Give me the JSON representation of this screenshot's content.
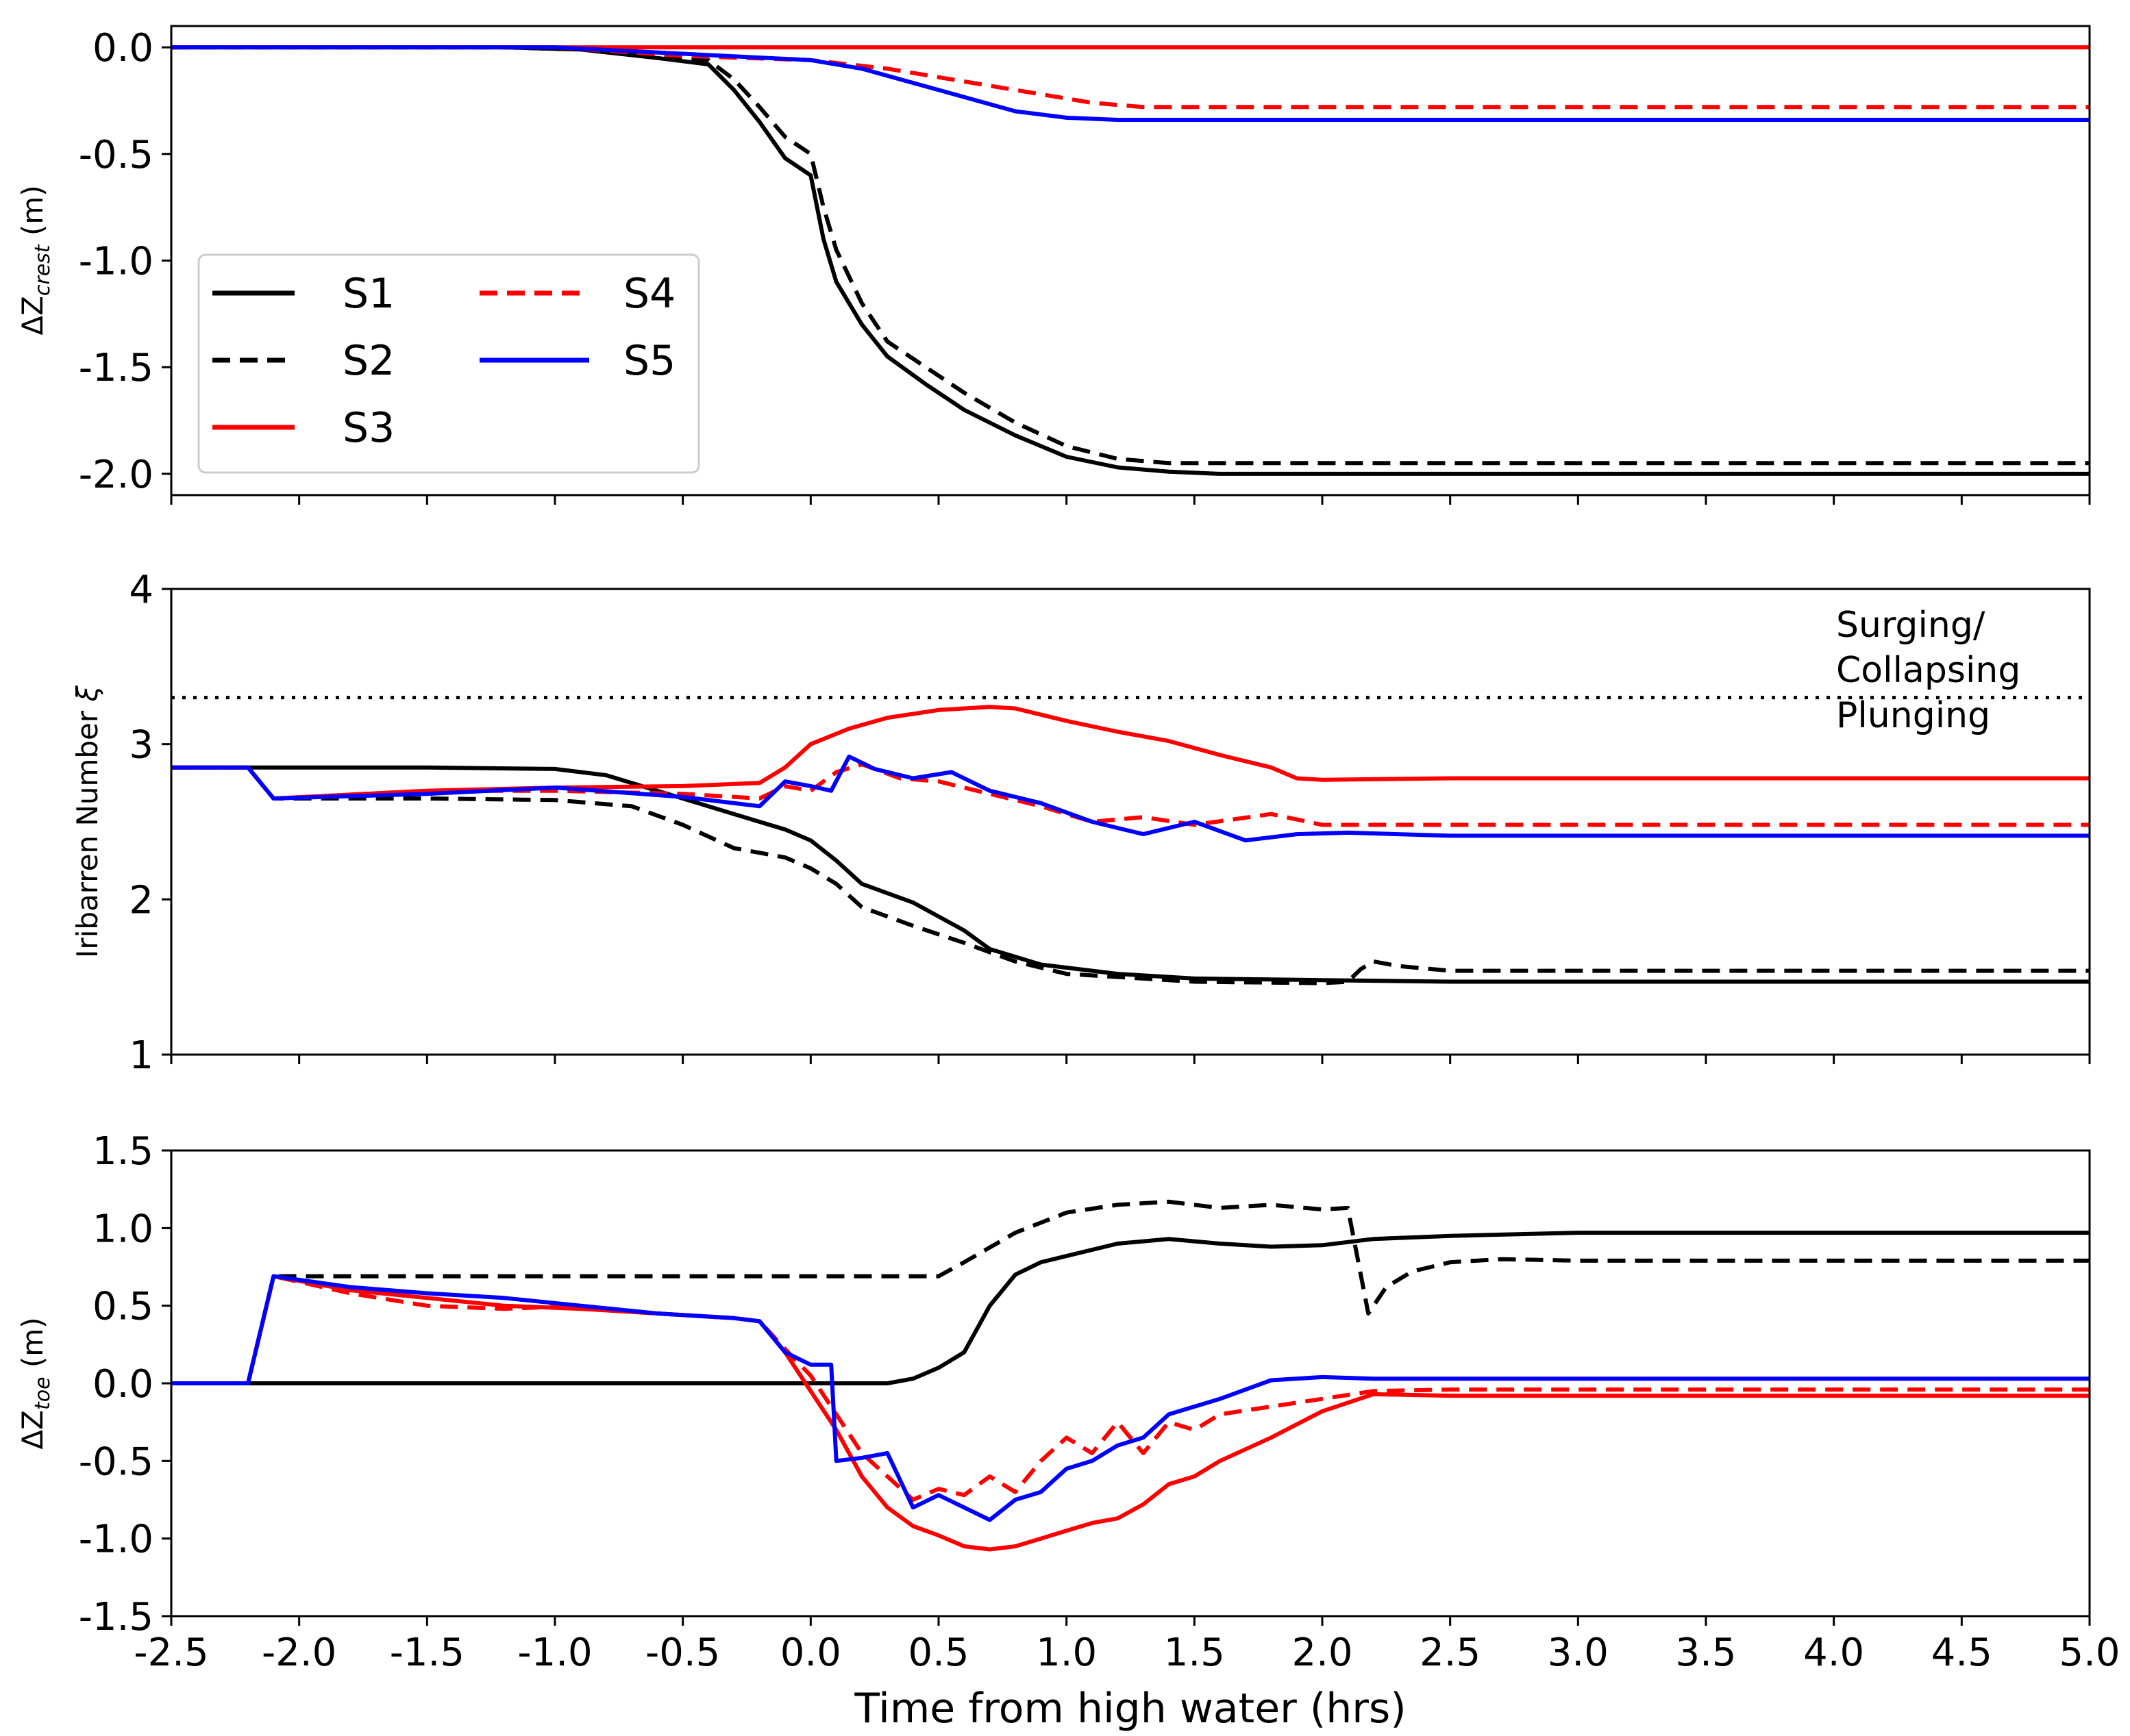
{
  "chart_data": [
    {
      "type": "line",
      "panel": "top",
      "ylabel_prefix": "ΔZ",
      "ylabel_sub": "crest",
      "ylabel_suffix": " (m)",
      "ylim": [
        -2.1,
        0.1
      ],
      "yticks": [
        0.0,
        -0.5,
        -1.0,
        -1.5,
        -2.0
      ],
      "ytick_labels": [
        "0.0",
        "-0.5",
        "-1.0",
        "-1.5",
        "-2.0"
      ],
      "xlim": [
        -2.5,
        5.0
      ],
      "legend": {
        "placement": "center-left",
        "entries": [
          {
            "label": "S1",
            "color": "#000000",
            "dash": "solid"
          },
          {
            "label": "S2",
            "color": "#000000",
            "dash": "dashed"
          },
          {
            "label": "S3",
            "color": "#ff0000",
            "dash": "solid"
          },
          {
            "label": "S4",
            "color": "#ff0000",
            "dash": "dashed"
          },
          {
            "label": "S5",
            "color": "#0000ff",
            "dash": "solid"
          }
        ]
      },
      "series": [
        {
          "name": "S1",
          "color": "#000000",
          "dash": "solid",
          "x": [
            -2.5,
            -1.2,
            -0.9,
            -0.6,
            -0.4,
            -0.3,
            -0.2,
            -0.1,
            0.0,
            0.05,
            0.1,
            0.2,
            0.3,
            0.45,
            0.6,
            0.8,
            1.0,
            1.2,
            1.4,
            1.6,
            2.0,
            5.0
          ],
          "y": [
            0.0,
            0.0,
            -0.01,
            -0.05,
            -0.08,
            -0.2,
            -0.35,
            -0.52,
            -0.6,
            -0.9,
            -1.1,
            -1.3,
            -1.45,
            -1.58,
            -1.7,
            -1.82,
            -1.92,
            -1.97,
            -1.99,
            -2.0,
            -2.0,
            -2.0
          ]
        },
        {
          "name": "S2",
          "color": "#000000",
          "dash": "dashed",
          "x": [
            -2.5,
            -1.2,
            -0.9,
            -0.6,
            -0.4,
            -0.3,
            -0.2,
            -0.1,
            0.0,
            0.05,
            0.1,
            0.2,
            0.3,
            0.45,
            0.6,
            0.8,
            1.0,
            1.2,
            1.4,
            2.0,
            5.0
          ],
          "y": [
            0.0,
            0.0,
            -0.01,
            -0.04,
            -0.06,
            -0.15,
            -0.28,
            -0.42,
            -0.5,
            -0.75,
            -0.95,
            -1.2,
            -1.38,
            -1.5,
            -1.62,
            -1.76,
            -1.87,
            -1.93,
            -1.95,
            -1.95,
            -1.95
          ]
        },
        {
          "name": "S3",
          "color": "#ff0000",
          "dash": "solid",
          "x": [
            -2.5,
            5.0
          ],
          "y": [
            0.0,
            0.0
          ]
        },
        {
          "name": "S4",
          "color": "#ff0000",
          "dash": "dashed",
          "x": [
            -2.5,
            -1.0,
            -0.5,
            0.0,
            0.3,
            0.6,
            0.9,
            1.1,
            1.3,
            1.5,
            5.0
          ],
          "y": [
            0.0,
            0.0,
            -0.04,
            -0.06,
            -0.1,
            -0.16,
            -0.22,
            -0.26,
            -0.28,
            -0.28,
            -0.28
          ]
        },
        {
          "name": "S5",
          "color": "#0000ff",
          "dash": "solid",
          "x": [
            -2.5,
            -1.0,
            -0.5,
            0.0,
            0.2,
            0.5,
            0.8,
            1.0,
            1.2,
            1.5,
            5.0
          ],
          "y": [
            0.0,
            0.0,
            -0.03,
            -0.06,
            -0.1,
            -0.2,
            -0.3,
            -0.33,
            -0.34,
            -0.34,
            -0.34
          ]
        }
      ]
    },
    {
      "type": "line",
      "panel": "middle",
      "ylabel": "Iribarren Number",
      "ylabel_symbol": "ξ",
      "ylim": [
        1,
        4
      ],
      "yticks": [
        1,
        2,
        3,
        4
      ],
      "ytick_labels": [
        "1",
        "2",
        "3",
        "4"
      ],
      "xlim": [
        -2.5,
        5.0
      ],
      "threshold": {
        "y": 3.3,
        "style": "dotted"
      },
      "annotations": [
        "Surging/",
        "Collapsing",
        "Plunging"
      ],
      "series": [
        {
          "name": "S1",
          "color": "#000000",
          "dash": "solid",
          "x": [
            -2.5,
            -2.2,
            -1.5,
            -1.0,
            -0.8,
            -0.6,
            -0.5,
            -0.3,
            -0.1,
            0.0,
            0.1,
            0.2,
            0.4,
            0.6,
            0.7,
            0.9,
            1.2,
            1.5,
            2.0,
            2.5,
            5.0
          ],
          "y": [
            2.85,
            2.85,
            2.85,
            2.84,
            2.8,
            2.7,
            2.65,
            2.55,
            2.45,
            2.38,
            2.25,
            2.1,
            1.98,
            1.8,
            1.68,
            1.58,
            1.52,
            1.49,
            1.48,
            1.47,
            1.47
          ]
        },
        {
          "name": "S2",
          "color": "#000000",
          "dash": "dashed",
          "x": [
            -2.5,
            -2.2,
            -2.1,
            -1.5,
            -1.0,
            -0.7,
            -0.5,
            -0.3,
            -0.1,
            0.0,
            0.1,
            0.2,
            0.4,
            0.6,
            0.8,
            1.0,
            1.5,
            2.0,
            2.1,
            2.15,
            2.2,
            2.3,
            2.5,
            5.0
          ],
          "y": [
            2.85,
            2.85,
            2.65,
            2.65,
            2.64,
            2.6,
            2.48,
            2.33,
            2.27,
            2.2,
            2.1,
            1.95,
            1.83,
            1.72,
            1.6,
            1.52,
            1.47,
            1.46,
            1.47,
            1.55,
            1.6,
            1.57,
            1.54,
            1.54
          ]
        },
        {
          "name": "S3",
          "color": "#ff0000",
          "dash": "solid",
          "x": [
            -2.5,
            -2.2,
            -2.1,
            -1.5,
            -1.0,
            -0.5,
            -0.2,
            -0.1,
            0.0,
            0.15,
            0.3,
            0.5,
            0.7,
            0.8,
            1.0,
            1.2,
            1.4,
            1.6,
            1.8,
            1.9,
            2.0,
            2.5,
            3.0,
            5.0
          ],
          "y": [
            2.85,
            2.85,
            2.65,
            2.7,
            2.72,
            2.73,
            2.75,
            2.85,
            3.0,
            3.1,
            3.17,
            3.22,
            3.24,
            3.23,
            3.15,
            3.08,
            3.02,
            2.93,
            2.85,
            2.78,
            2.77,
            2.78,
            2.78,
            2.78
          ]
        },
        {
          "name": "S4",
          "color": "#ff0000",
          "dash": "dashed",
          "x": [
            -2.5,
            -2.2,
            -2.1,
            -1.5,
            -1.0,
            -0.5,
            -0.2,
            -0.1,
            0.0,
            0.1,
            0.2,
            0.35,
            0.5,
            0.7,
            0.9,
            1.1,
            1.3,
            1.5,
            1.8,
            2.0,
            2.5,
            5.0
          ],
          "y": [
            2.85,
            2.85,
            2.65,
            2.7,
            2.7,
            2.68,
            2.65,
            2.73,
            2.7,
            2.82,
            2.87,
            2.78,
            2.76,
            2.68,
            2.6,
            2.5,
            2.53,
            2.48,
            2.55,
            2.48,
            2.48,
            2.48
          ]
        },
        {
          "name": "S5",
          "color": "#0000ff",
          "dash": "solid",
          "x": [
            -2.5,
            -2.2,
            -2.1,
            -1.5,
            -1.0,
            -0.5,
            -0.2,
            -0.1,
            0.0,
            0.08,
            0.15,
            0.25,
            0.4,
            0.55,
            0.7,
            0.9,
            1.1,
            1.3,
            1.5,
            1.7,
            1.9,
            2.1,
            2.5,
            5.0
          ],
          "y": [
            2.85,
            2.85,
            2.65,
            2.68,
            2.72,
            2.66,
            2.6,
            2.76,
            2.73,
            2.7,
            2.92,
            2.84,
            2.78,
            2.82,
            2.7,
            2.62,
            2.5,
            2.42,
            2.5,
            2.38,
            2.42,
            2.43,
            2.41,
            2.41
          ]
        }
      ]
    },
    {
      "type": "line",
      "panel": "bottom",
      "ylabel_prefix": "ΔZ",
      "ylabel_sub": "toe",
      "ylabel_suffix": " (m)",
      "ylim": [
        -1.5,
        1.5
      ],
      "yticks": [
        1.5,
        1.0,
        0.5,
        0.0,
        -0.5,
        -1.0,
        -1.5
      ],
      "ytick_labels": [
        "1.5",
        "1.0",
        "0.5",
        "0.0",
        "-0.5",
        "-1.0",
        "-1.5"
      ],
      "xlim": [
        -2.5,
        5.0
      ],
      "xticks": [
        -2.5,
        -2.0,
        -1.5,
        -1.0,
        -0.5,
        0.0,
        0.5,
        1.0,
        1.5,
        2.0,
        2.5,
        3.0,
        3.5,
        4.0,
        4.5,
        5.0
      ],
      "xtick_labels": [
        "-2.5",
        "-2.0",
        "-1.5",
        "-1.0",
        "-0.5",
        "0.0",
        "0.5",
        "1.0",
        "1.5",
        "2.0",
        "2.5",
        "3.0",
        "3.5",
        "4.0",
        "4.5",
        "5.0"
      ],
      "xlabel": "Time from high water (hrs)",
      "series": [
        {
          "name": "S1",
          "color": "#000000",
          "dash": "solid",
          "x": [
            -2.5,
            0.3,
            0.4,
            0.5,
            0.6,
            0.7,
            0.8,
            0.9,
            1.0,
            1.2,
            1.4,
            1.6,
            1.8,
            2.0,
            2.2,
            2.5,
            3.0,
            5.0
          ],
          "y": [
            0.0,
            0.0,
            0.03,
            0.1,
            0.2,
            0.5,
            0.7,
            0.78,
            0.82,
            0.9,
            0.93,
            0.9,
            0.88,
            0.89,
            0.93,
            0.95,
            0.97,
            0.97
          ]
        },
        {
          "name": "S2",
          "color": "#000000",
          "dash": "dashed",
          "x": [
            -2.5,
            -2.2,
            -2.1,
            -1.0,
            0.0,
            0.5,
            0.6,
            0.8,
            1.0,
            1.2,
            1.4,
            1.6,
            1.8,
            2.0,
            2.1,
            2.18,
            2.25,
            2.35,
            2.5,
            2.7,
            3.0,
            5.0
          ],
          "y": [
            0.0,
            0.0,
            0.69,
            0.69,
            0.69,
            0.69,
            0.78,
            0.97,
            1.1,
            1.15,
            1.17,
            1.13,
            1.15,
            1.12,
            1.13,
            0.45,
            0.62,
            0.72,
            0.78,
            0.8,
            0.79,
            0.79
          ]
        },
        {
          "name": "S3",
          "color": "#ff0000",
          "dash": "solid",
          "x": [
            -2.5,
            -2.2,
            -2.1,
            -1.8,
            -1.5,
            -1.2,
            -0.9,
            -0.6,
            -0.3,
            -0.2,
            -0.1,
            0.0,
            0.1,
            0.2,
            0.3,
            0.4,
            0.5,
            0.6,
            0.7,
            0.8,
            0.9,
            1.0,
            1.1,
            1.2,
            1.3,
            1.4,
            1.5,
            1.6,
            1.8,
            2.0,
            2.2,
            2.5,
            5.0
          ],
          "y": [
            0.0,
            0.0,
            0.69,
            0.6,
            0.55,
            0.5,
            0.48,
            0.45,
            0.42,
            0.4,
            0.2,
            -0.05,
            -0.3,
            -0.6,
            -0.8,
            -0.92,
            -0.98,
            -1.05,
            -1.07,
            -1.05,
            -1.0,
            -0.95,
            -0.9,
            -0.87,
            -0.78,
            -0.65,
            -0.6,
            -0.5,
            -0.35,
            -0.18,
            -0.07,
            -0.08,
            -0.08
          ]
        },
        {
          "name": "S4",
          "color": "#ff0000",
          "dash": "dashed",
          "x": [
            -2.5,
            -2.2,
            -2.1,
            -1.8,
            -1.5,
            -1.2,
            -0.9,
            -0.6,
            -0.3,
            -0.2,
            -0.1,
            0.0,
            0.1,
            0.2,
            0.3,
            0.4,
            0.5,
            0.6,
            0.7,
            0.8,
            0.9,
            1.0,
            1.1,
            1.2,
            1.3,
            1.4,
            1.5,
            1.6,
            1.8,
            2.0,
            2.2,
            2.5,
            5.0
          ],
          "y": [
            0.0,
            0.0,
            0.69,
            0.58,
            0.5,
            0.48,
            0.5,
            0.45,
            0.42,
            0.4,
            0.22,
            0.05,
            -0.2,
            -0.45,
            -0.6,
            -0.75,
            -0.68,
            -0.72,
            -0.6,
            -0.7,
            -0.5,
            -0.35,
            -0.45,
            -0.25,
            -0.45,
            -0.25,
            -0.3,
            -0.2,
            -0.15,
            -0.1,
            -0.05,
            -0.04,
            -0.04
          ]
        },
        {
          "name": "S5",
          "color": "#0000ff",
          "dash": "solid",
          "x": [
            -2.5,
            -2.2,
            -2.1,
            -1.8,
            -1.5,
            -1.2,
            -0.9,
            -0.6,
            -0.3,
            -0.2,
            -0.1,
            0.0,
            0.08,
            0.1,
            0.2,
            0.3,
            0.4,
            0.5,
            0.6,
            0.7,
            0.8,
            0.9,
            1.0,
            1.1,
            1.2,
            1.3,
            1.4,
            1.5,
            1.6,
            1.8,
            2.0,
            2.2,
            2.5,
            5.0
          ],
          "y": [
            0.0,
            0.0,
            0.69,
            0.62,
            0.58,
            0.55,
            0.5,
            0.45,
            0.42,
            0.4,
            0.2,
            0.12,
            0.12,
            -0.5,
            -0.48,
            -0.45,
            -0.8,
            -0.72,
            -0.8,
            -0.88,
            -0.75,
            -0.7,
            -0.55,
            -0.5,
            -0.4,
            -0.35,
            -0.2,
            -0.15,
            -0.1,
            0.02,
            0.04,
            0.03,
            0.03,
            0.03
          ]
        }
      ]
    }
  ]
}
